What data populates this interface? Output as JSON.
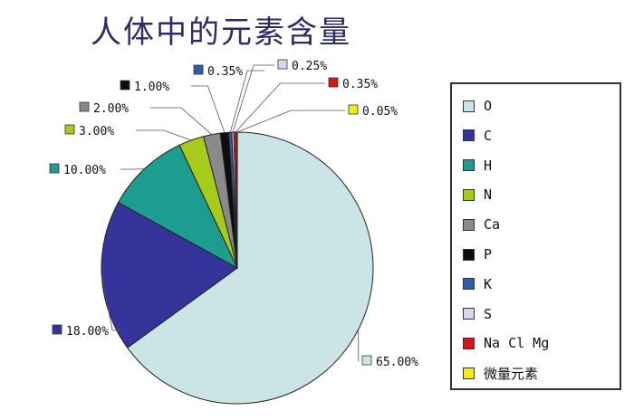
{
  "chart_data": {
    "type": "pie",
    "title": "人体中的元素含量",
    "slices": [
      {
        "name": "O",
        "value": 65.0,
        "label": "65.00%",
        "color": "#cbe4e6"
      },
      {
        "name": "C",
        "value": 18.0,
        "label": "18.00%",
        "color": "#35349a"
      },
      {
        "name": "H",
        "value": 10.0,
        "label": "10.00%",
        "color": "#1d9d8f"
      },
      {
        "name": "N",
        "value": 3.0,
        "label": "3.00%",
        "color": "#a6cb1b"
      },
      {
        "name": "Ca",
        "value": 2.0,
        "label": "2.00%",
        "color": "#8a8a8a"
      },
      {
        "name": "P",
        "value": 1.0,
        "label": "1.00%",
        "color": "#0d0d0d"
      },
      {
        "name": "K",
        "value": 0.35,
        "label": "0.35%",
        "color": "#2e5ea8"
      },
      {
        "name": "S",
        "value": 0.25,
        "label": "0.25%",
        "color": "#d9d7ef"
      },
      {
        "name": "Na Cl Mg",
        "value": 0.35,
        "label": "0.35%",
        "color": "#d01a1a"
      },
      {
        "name": "微量元素",
        "value": 0.05,
        "label": "0.05%",
        "color": "#f2ee10"
      }
    ],
    "legend_position": "right"
  }
}
